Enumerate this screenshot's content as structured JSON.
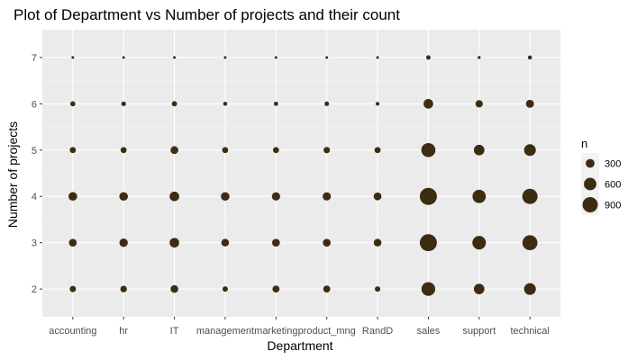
{
  "chart_data": {
    "type": "scatter",
    "title": "Plot of Department vs Number of projects and their count",
    "xlabel": "Department",
    "ylabel": "Number of projects",
    "categories": [
      "accounting",
      "hr",
      "IT",
      "management",
      "marketing",
      "product_mng",
      "RandD",
      "sales",
      "support",
      "technical"
    ],
    "y_ticks": [
      2,
      3,
      4,
      5,
      6,
      7
    ],
    "ylim": [
      1.4,
      7.6
    ],
    "grid": true,
    "point_color": "#3d2c11",
    "panel_color": "#ebebeb",
    "size_variable": "n",
    "legend": {
      "title": "n",
      "placement": "right",
      "entries": [
        {
          "label": "300",
          "value": 300
        },
        {
          "label": "600",
          "value": 600
        },
        {
          "label": "900",
          "value": 900
        }
      ]
    },
    "points": [
      {
        "x": "accounting",
        "y": 2,
        "n": 150
      },
      {
        "x": "accounting",
        "y": 3,
        "n": 235
      },
      {
        "x": "accounting",
        "y": 4,
        "n": 290
      },
      {
        "x": "accounting",
        "y": 5,
        "n": 145
      },
      {
        "x": "accounting",
        "y": 6,
        "n": 100
      },
      {
        "x": "accounting",
        "y": 7,
        "n": 15
      },
      {
        "x": "hr",
        "y": 2,
        "n": 165
      },
      {
        "x": "hr",
        "y": 3,
        "n": 270
      },
      {
        "x": "hr",
        "y": 4,
        "n": 285
      },
      {
        "x": "hr",
        "y": 5,
        "n": 140
      },
      {
        "x": "hr",
        "y": 6,
        "n": 85
      },
      {
        "x": "hr",
        "y": 7,
        "n": 10
      },
      {
        "x": "IT",
        "y": 2,
        "n": 225
      },
      {
        "x": "IT",
        "y": 3,
        "n": 355
      },
      {
        "x": "IT",
        "y": 4,
        "n": 355
      },
      {
        "x": "IT",
        "y": 5,
        "n": 235
      },
      {
        "x": "IT",
        "y": 6,
        "n": 110
      },
      {
        "x": "IT",
        "y": 7,
        "n": 25
      },
      {
        "x": "management",
        "y": 2,
        "n": 110
      },
      {
        "x": "management",
        "y": 3,
        "n": 225
      },
      {
        "x": "management",
        "y": 4,
        "n": 285
      },
      {
        "x": "management",
        "y": 5,
        "n": 140
      },
      {
        "x": "management",
        "y": 6,
        "n": 65
      },
      {
        "x": "management",
        "y": 7,
        "n": 10
      },
      {
        "x": "marketing",
        "y": 2,
        "n": 190
      },
      {
        "x": "marketing",
        "y": 3,
        "n": 235
      },
      {
        "x": "marketing",
        "y": 4,
        "n": 265
      },
      {
        "x": "marketing",
        "y": 5,
        "n": 140
      },
      {
        "x": "marketing",
        "y": 6,
        "n": 70
      },
      {
        "x": "marketing",
        "y": 7,
        "n": 10
      },
      {
        "x": "product_mng",
        "y": 2,
        "n": 190
      },
      {
        "x": "product_mng",
        "y": 3,
        "n": 235
      },
      {
        "x": "product_mng",
        "y": 4,
        "n": 260
      },
      {
        "x": "product_mng",
        "y": 5,
        "n": 160
      },
      {
        "x": "product_mng",
        "y": 6,
        "n": 80
      },
      {
        "x": "product_mng",
        "y": 7,
        "n": 20
      },
      {
        "x": "RandD",
        "y": 2,
        "n": 115
      },
      {
        "x": "RandD",
        "y": 3,
        "n": 225
      },
      {
        "x": "RandD",
        "y": 4,
        "n": 235
      },
      {
        "x": "RandD",
        "y": 5,
        "n": 145
      },
      {
        "x": "RandD",
        "y": 6,
        "n": 55
      },
      {
        "x": "RandD",
        "y": 7,
        "n": 10
      },
      {
        "x": "sales",
        "y": 2,
        "n": 725
      },
      {
        "x": "sales",
        "y": 3,
        "n": 1120
      },
      {
        "x": "sales",
        "y": 4,
        "n": 1125
      },
      {
        "x": "sales",
        "y": 5,
        "n": 760
      },
      {
        "x": "sales",
        "y": 6,
        "n": 355
      },
      {
        "x": "sales",
        "y": 7,
        "n": 75
      },
      {
        "x": "support",
        "y": 2,
        "n": 425
      },
      {
        "x": "support",
        "y": 3,
        "n": 705
      },
      {
        "x": "support",
        "y": 4,
        "n": 680
      },
      {
        "x": "support",
        "y": 5,
        "n": 430
      },
      {
        "x": "support",
        "y": 6,
        "n": 205
      },
      {
        "x": "support",
        "y": 7,
        "n": 35
      },
      {
        "x": "technical",
        "y": 2,
        "n": 535
      },
      {
        "x": "technical",
        "y": 3,
        "n": 870
      },
      {
        "x": "technical",
        "y": 4,
        "n": 895
      },
      {
        "x": "technical",
        "y": 5,
        "n": 530
      },
      {
        "x": "technical",
        "y": 6,
        "n": 250
      },
      {
        "x": "technical",
        "y": 7,
        "n": 65
      }
    ]
  }
}
